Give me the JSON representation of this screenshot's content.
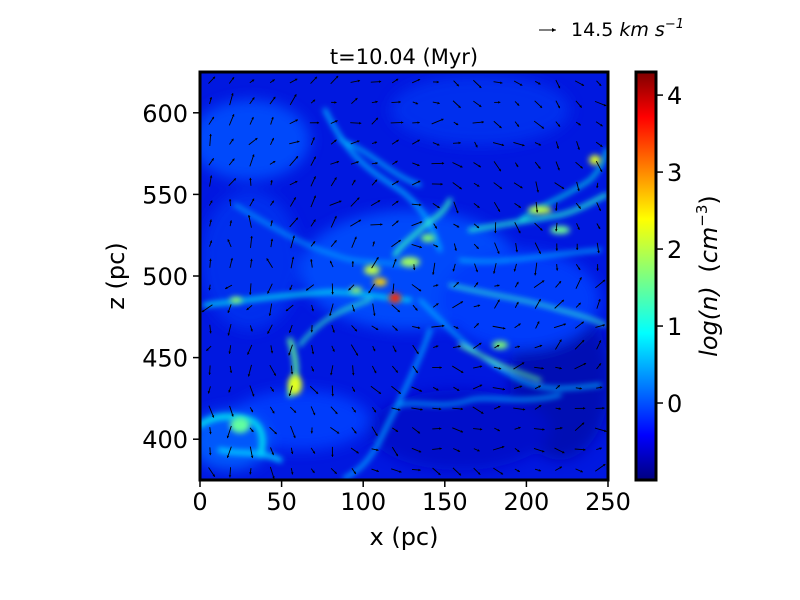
{
  "chart_data": {
    "type": "heatmap",
    "title": "t=10.04 (Myr)",
    "xlabel": "x (pc)",
    "ylabel": "z (pc)",
    "xlim": [
      0,
      250
    ],
    "ylim": [
      375,
      625
    ],
    "x_ticks": [
      0,
      50,
      100,
      150,
      200,
      250
    ],
    "y_ticks": [
      400,
      450,
      500,
      550,
      600
    ],
    "colorbar": {
      "label": "log(n) (cm^-3)",
      "range": [
        -1,
        4.3
      ],
      "ticks": [
        0,
        1,
        2,
        3,
        4
      ],
      "colormap": "jet"
    },
    "quiver_key": {
      "label": "14.5 km s^-1",
      "value": 14.5
    },
    "dense_features": [
      {
        "x": 120,
        "z": 492,
        "log_n": 3.3
      },
      {
        "x": 110,
        "z": 505,
        "log_n": 2.3
      },
      {
        "x": 140,
        "z": 525,
        "log_n": 2.0
      },
      {
        "x": 95,
        "z": 500,
        "log_n": 2.0
      },
      {
        "x": 60,
        "z": 435,
        "log_n": 2.2
      },
      {
        "x": 85,
        "z": 585,
        "log_n": 1.3
      },
      {
        "x": 225,
        "z": 540,
        "log_n": 2.3
      },
      {
        "x": 245,
        "z": 570,
        "log_n": 1.8
      },
      {
        "x": 25,
        "z": 405,
        "log_n": 1.6
      },
      {
        "x": 175,
        "z": 460,
        "log_n": 1.5
      },
      {
        "x": 60,
        "z": 480,
        "log_n": 1.4
      }
    ],
    "grid": false,
    "legend": "none"
  }
}
